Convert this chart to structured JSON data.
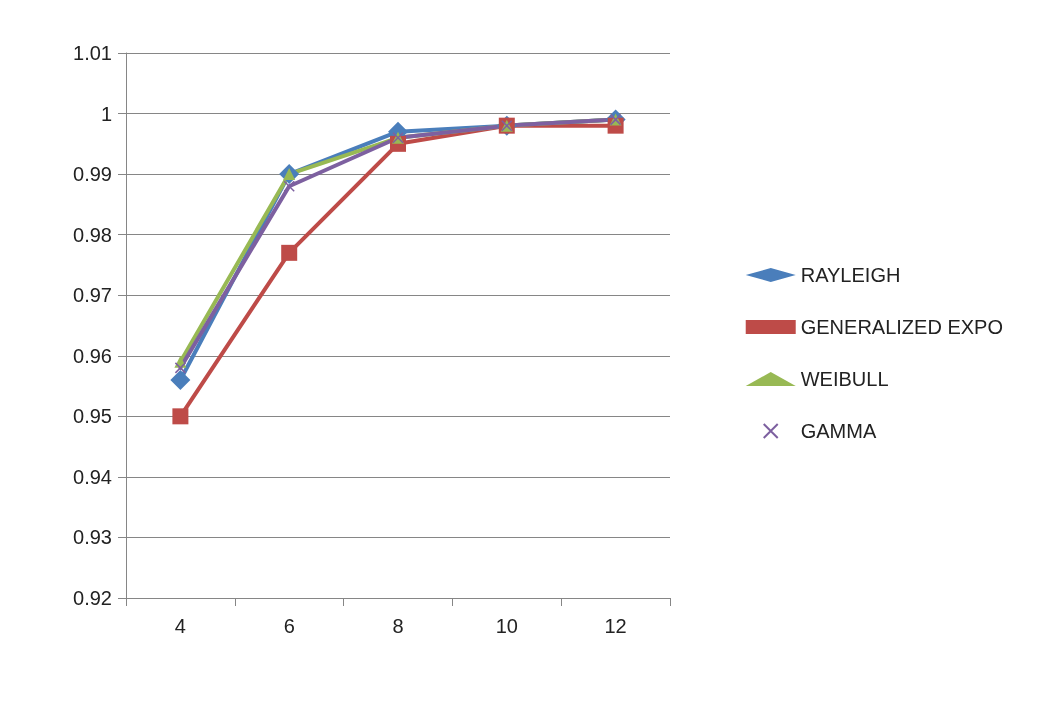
{
  "chart_data": {
    "type": "line",
    "categories": [
      "4",
      "6",
      "8",
      "10",
      "12"
    ],
    "ylim": [
      0.92,
      1.01
    ],
    "yticks": [
      0.92,
      0.93,
      0.94,
      0.95,
      0.96,
      0.97,
      0.98,
      0.99,
      {
        "value": 1,
        "label": "1"
      },
      1.01
    ],
    "grid": "y",
    "legend": "right",
    "series": [
      {
        "name": "RAYLEIGH",
        "color": "#4a7ebb",
        "marker": "diamond",
        "values": [
          0.956,
          0.99,
          0.997,
          0.998,
          0.999
        ]
      },
      {
        "name": "GENERALIZED EXPO",
        "color": "#be4b48",
        "marker": "square",
        "values": [
          0.95,
          0.977,
          0.995,
          0.998,
          0.998
        ]
      },
      {
        "name": "WEIBULL",
        "color": "#98b954",
        "marker": "triangle",
        "values": [
          0.959,
          0.99,
          0.996,
          0.998,
          0.999
        ]
      },
      {
        "name": "GAMMA",
        "color": "#7d60a0",
        "marker": "cross",
        "values": [
          0.958,
          0.988,
          0.996,
          0.998,
          0.999
        ]
      }
    ]
  }
}
